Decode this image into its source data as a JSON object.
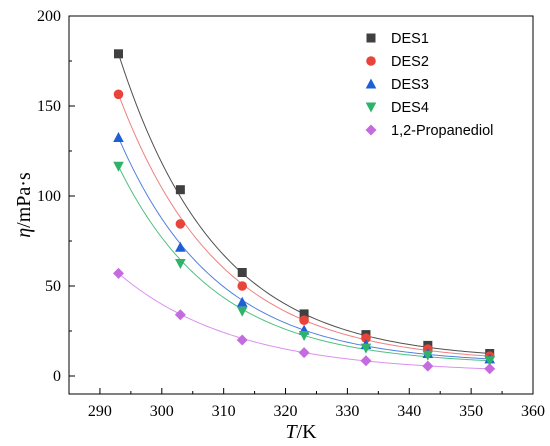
{
  "chart_data": {
    "type": "scatter",
    "xlabel": {
      "italic": "T",
      "rest": "/K"
    },
    "ylabel": {
      "italic": "η",
      "rest": "/mPa·s"
    },
    "xlim": [
      285,
      360
    ],
    "ylim": [
      -10,
      200
    ],
    "x_ticks": [
      "290",
      "300",
      "310",
      "320",
      "330",
      "340",
      "350",
      "360"
    ],
    "y_ticks": [
      "0",
      "50",
      "100",
      "150",
      "200"
    ],
    "legend_position": "top-right",
    "x": [
      293,
      303,
      313,
      323,
      333,
      343,
      353
    ],
    "series": [
      {
        "name": "DES1",
        "marker": "square",
        "color": "#404040",
        "fit_color": "#505050",
        "values": [
          179,
          103.5,
          57.5,
          34.5,
          23,
          17,
          12.5
        ]
      },
      {
        "name": "DES2",
        "marker": "circle",
        "color": "#e8443a",
        "fit_color": "#f08080",
        "values": [
          156.5,
          84.5,
          50,
          31,
          21,
          15,
          11
        ]
      },
      {
        "name": "DES3",
        "marker": "triangle-up",
        "color": "#1f5fd6",
        "fit_color": "#5080e0",
        "values": [
          132.5,
          71.5,
          41,
          25.5,
          17.5,
          12.5,
          9.5
        ]
      },
      {
        "name": "DES4",
        "marker": "triangle-down",
        "color": "#2fb36a",
        "fit_color": "#50c080",
        "values": [
          116.5,
          62.5,
          36,
          22.5,
          15.5,
          11.5,
          8.5
        ]
      },
      {
        "name": "1,2-Propanediol",
        "marker": "diamond",
        "color": "#c46be0",
        "fit_color": "#dc90ee",
        "values": [
          57,
          34,
          20,
          13,
          8.5,
          5.5,
          4
        ]
      }
    ]
  }
}
